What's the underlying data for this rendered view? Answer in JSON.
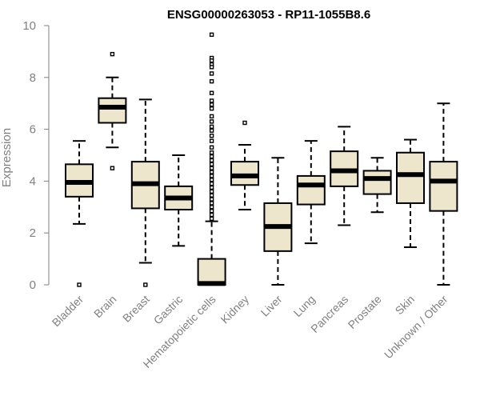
{
  "chart_data": {
    "type": "boxplot",
    "title": "ENSG00000263053 - RP11-1055B8.6",
    "xlabel": "",
    "ylabel": "Expression",
    "ylim": [
      0,
      10
    ],
    "yticks": [
      0,
      2,
      4,
      6,
      8,
      10
    ],
    "grid": false,
    "colors": {
      "box_fill": "#ede6cc",
      "line": "#000000",
      "axis_text": "#808080"
    },
    "categories": [
      "Bladder",
      "Brain",
      "Breast",
      "Gastric",
      "Hematopoietic cells",
      "Kidney",
      "Liver",
      "Lung",
      "Pancreas",
      "Prostate",
      "Skin",
      "Unknown / Other"
    ],
    "boxes": [
      {
        "min": 2.35,
        "q1": 3.4,
        "median": 3.95,
        "q3": 4.65,
        "max": 5.55,
        "outliers": [
          0.0
        ]
      },
      {
        "min": 5.3,
        "q1": 6.25,
        "median": 6.85,
        "q3": 7.2,
        "max": 8.0,
        "outliers": [
          8.9,
          4.5
        ]
      },
      {
        "min": 0.85,
        "q1": 2.95,
        "median": 3.9,
        "q3": 4.75,
        "max": 7.15,
        "outliers": [
          0.0
        ]
      },
      {
        "min": 1.5,
        "q1": 2.9,
        "median": 3.35,
        "q3": 3.8,
        "max": 5.0,
        "outliers": []
      },
      {
        "min": 0.0,
        "q1": 0.0,
        "median": 0.05,
        "q3": 1.0,
        "max": 2.45,
        "outliers": [
          9.65,
          8.75,
          8.65,
          8.5,
          8.4,
          8.15,
          7.85,
          7.4,
          7.1,
          6.95,
          6.8,
          6.5,
          6.3,
          6.1,
          5.95,
          5.75,
          5.55,
          5.3,
          5.1,
          4.95,
          4.8,
          4.65,
          4.5,
          4.35,
          4.2,
          4.05,
          3.9,
          3.75,
          3.6,
          3.45,
          3.3,
          3.15,
          3.0,
          2.85,
          2.7,
          2.55
        ]
      },
      {
        "min": 2.9,
        "q1": 3.85,
        "median": 4.2,
        "q3": 4.75,
        "max": 5.4,
        "outliers": [
          6.25
        ]
      },
      {
        "min": 0.0,
        "q1": 1.3,
        "median": 2.25,
        "q3": 3.15,
        "max": 4.9,
        "outliers": []
      },
      {
        "min": 1.6,
        "q1": 3.1,
        "median": 3.85,
        "q3": 4.2,
        "max": 5.55,
        "outliers": []
      },
      {
        "min": 2.3,
        "q1": 3.8,
        "median": 4.4,
        "q3": 5.15,
        "max": 6.1,
        "outliers": []
      },
      {
        "min": 2.8,
        "q1": 3.5,
        "median": 4.1,
        "q3": 4.4,
        "max": 4.9,
        "outliers": []
      },
      {
        "min": 1.45,
        "q1": 3.15,
        "median": 4.25,
        "q3": 5.1,
        "max": 5.6,
        "outliers": []
      },
      {
        "min": 0.0,
        "q1": 2.85,
        "median": 4.0,
        "q3": 4.75,
        "max": 7.0,
        "outliers": []
      }
    ]
  }
}
